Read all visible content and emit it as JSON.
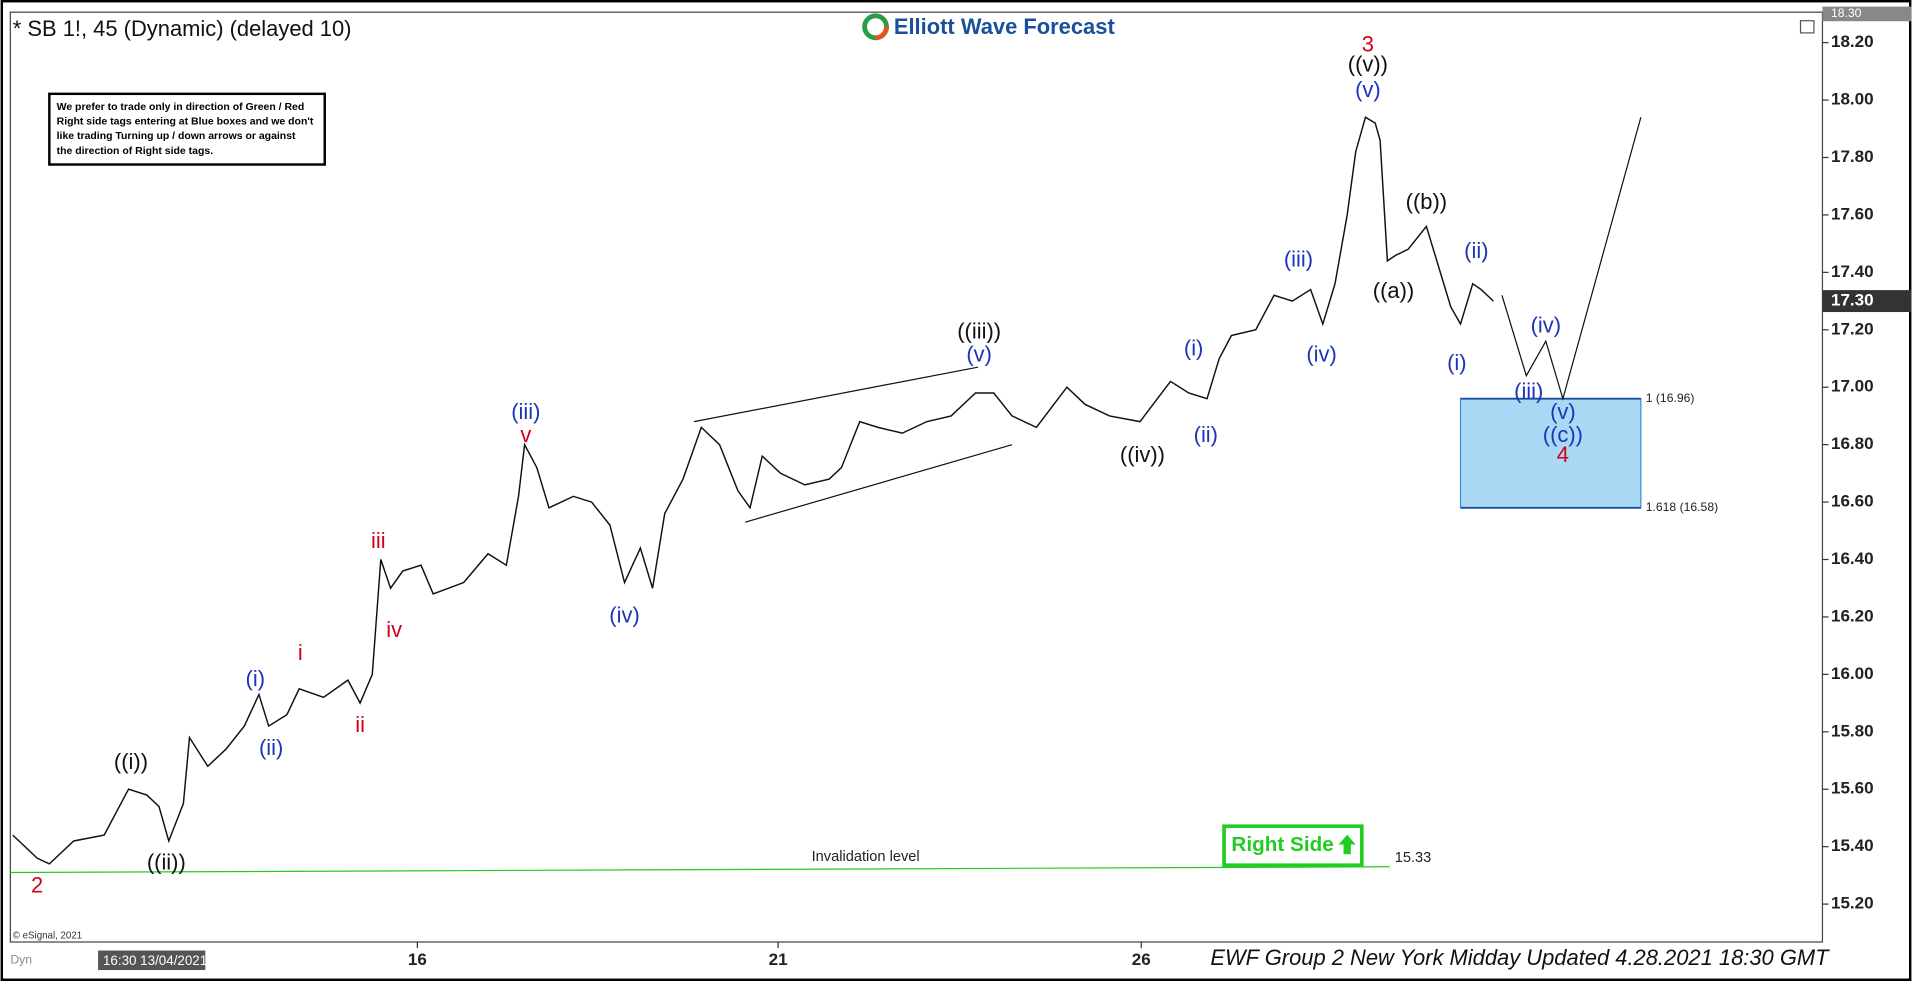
{
  "chart_data": {
    "type": "line",
    "title": "* SB 1!, 45 (Dynamic) (delayed 10)",
    "brand": "Elliott Wave Forecast",
    "note": [
      "We prefer to trade only in direction of Green / Red",
      "Right side tags entering at Blue boxes and we don't",
      "like trading Turning up / down arrows or against",
      "the direction of Right side tags."
    ],
    "footer": "EWF Group 2 New York Midday Updated 4.28.2021 18:30 GMT",
    "copyright": "© eSignal, 2021",
    "start_label": "16:30 13/04/2021",
    "mode_label": "Dyn",
    "right_side": "Right Side",
    "xlim": [
      0,
      1487
    ],
    "xticks": [
      {
        "value": 334,
        "label": "16"
      },
      {
        "value": 630,
        "label": "21"
      },
      {
        "value": 928,
        "label": "26"
      }
    ],
    "ylim": [
      15.068,
      18.306
    ],
    "yticks": [
      {
        "value": 15.2,
        "label": "15.20"
      },
      {
        "value": 15.4,
        "label": "15.40"
      },
      {
        "value": 15.6,
        "label": "15.60"
      },
      {
        "value": 15.8,
        "label": "15.80"
      },
      {
        "value": 16.0,
        "label": "16.00"
      },
      {
        "value": 16.2,
        "label": "16.20"
      },
      {
        "value": 16.4,
        "label": "16.40"
      },
      {
        "value": 16.6,
        "label": "16.60"
      },
      {
        "value": 16.8,
        "label": "16.80"
      },
      {
        "value": 17.0,
        "label": "17.00"
      },
      {
        "value": 17.2,
        "label": "17.20"
      },
      {
        "value": 17.4,
        "label": "17.40"
      },
      {
        "value": 17.6,
        "label": "17.60"
      },
      {
        "value": 17.8,
        "label": "17.80"
      },
      {
        "value": 18.0,
        "label": "18.00"
      },
      {
        "value": 18.2,
        "label": "18.20"
      }
    ],
    "last_price": {
      "value": 17.3,
      "label": "17.30"
    },
    "top_price": {
      "value": 18.3,
      "label": "18.30"
    },
    "series": [
      {
        "color": "#111111",
        "x": [
          2,
          22,
          32,
          52,
          77,
          97,
          112,
          122,
          130,
          142,
          147,
          162,
          177,
          192,
          204,
          212,
          227,
          237,
          257,
          277,
          287,
          297,
          304,
          312,
          322,
          337,
          347,
          372,
          392,
          407,
          417,
          422,
          432,
          442,
          462,
          477,
          492,
          504,
          517,
          527,
          537,
          552,
          567,
          582,
          597,
          607,
          617,
          632,
          652,
          672,
          682,
          697,
          712,
          732,
          752,
          772,
          792,
          807,
          822,
          842,
          867,
          882,
          902,
          927,
          952,
          967,
          982,
          992,
          1002,
          1022,
          1037,
          1052,
          1067,
          1077,
          1087,
          1097,
          1104,
          1112,
          1120,
          1124,
          1130,
          1137,
          1147,
          1162,
          1172,
          1182,
          1190,
          1200,
          1207,
          1217
        ],
        "values": [
          15.44,
          15.36,
          15.34,
          15.42,
          15.44,
          15.6,
          15.58,
          15.54,
          15.42,
          15.55,
          15.78,
          15.68,
          15.74,
          15.82,
          15.93,
          15.82,
          15.86,
          15.95,
          15.92,
          15.98,
          15.9,
          16.0,
          16.4,
          16.3,
          16.36,
          16.38,
          16.28,
          16.32,
          16.42,
          16.38,
          16.62,
          16.8,
          16.72,
          16.58,
          16.62,
          16.6,
          16.52,
          16.32,
          16.44,
          16.3,
          16.56,
          16.68,
          16.86,
          16.8,
          16.64,
          16.58,
          16.76,
          16.7,
          16.66,
          16.68,
          16.72,
          16.88,
          16.86,
          16.84,
          16.88,
          16.9,
          16.98,
          16.98,
          16.9,
          16.86,
          17.0,
          16.94,
          16.9,
          16.88,
          17.02,
          16.98,
          16.96,
          17.1,
          17.18,
          17.2,
          17.32,
          17.3,
          17.34,
          17.22,
          17.36,
          17.6,
          17.82,
          17.94,
          17.92,
          17.86,
          17.44,
          17.46,
          17.48,
          17.56,
          17.42,
          17.28,
          17.22,
          17.36,
          17.34,
          17.3
        ]
      }
    ],
    "projection": {
      "x": [
        1224,
        1244,
        1260,
        1274,
        1338
      ],
      "values": [
        17.32,
        17.04,
        17.16,
        16.96,
        17.94
      ]
    },
    "trendlines": [
      {
        "x": [
          561,
          794
        ],
        "values": [
          16.88,
          17.07
        ]
      },
      {
        "x": [
          603,
          822
        ],
        "values": [
          16.53,
          16.8
        ]
      }
    ],
    "invalidation": {
      "label": "Invalidation level",
      "value": 15.33,
      "x": [
        0,
        1132
      ],
      "values": [
        15.31,
        15.33
      ]
    },
    "target_box": {
      "x": [
        1190,
        1338
      ],
      "levels": [
        {
          "value": 16.96,
          "label": "1 (16.96)"
        },
        {
          "value": 16.58,
          "label": "1.618 (16.58)"
        }
      ]
    },
    "wave_labels": [
      {
        "text": "2",
        "x": 22,
        "y": 15.26,
        "color": "#d0021b"
      },
      {
        "text": "((i))",
        "x": 99,
        "y": 15.69,
        "color": "#111111"
      },
      {
        "text": "((ii))",
        "x": 128,
        "y": 15.34,
        "color": "#111111"
      },
      {
        "text": "(i)",
        "x": 201,
        "y": 15.98,
        "color": "#1c34b8"
      },
      {
        "text": "(ii)",
        "x": 214,
        "y": 15.74,
        "color": "#1c34b8"
      },
      {
        "text": "i",
        "x": 238,
        "y": 16.07,
        "color": "#d0021b"
      },
      {
        "text": "ii",
        "x": 287,
        "y": 15.82,
        "color": "#d0021b"
      },
      {
        "text": "iii",
        "x": 302,
        "y": 16.46,
        "color": "#d0021b"
      },
      {
        "text": "iv",
        "x": 315,
        "y": 16.15,
        "color": "#d0021b"
      },
      {
        "text": "(iii)",
        "x": 423,
        "y": 16.91,
        "color": "#1c34b8"
      },
      {
        "text": "v",
        "x": 423,
        "y": 16.83,
        "color": "#d0021b"
      },
      {
        "text": "(iv)",
        "x": 504,
        "y": 16.2,
        "color": "#1c34b8"
      },
      {
        "text": "((iii))",
        "x": 795,
        "y": 17.19,
        "color": "#111111"
      },
      {
        "text": "(v)",
        "x": 795,
        "y": 17.11,
        "color": "#1c34b8"
      },
      {
        "text": "((iv))",
        "x": 929,
        "y": 16.76,
        "color": "#111111"
      },
      {
        "text": "(i)",
        "x": 971,
        "y": 17.13,
        "color": "#1c34b8"
      },
      {
        "text": "(ii)",
        "x": 981,
        "y": 16.83,
        "color": "#1c34b8"
      },
      {
        "text": "(iii)",
        "x": 1057,
        "y": 17.44,
        "color": "#1c34b8"
      },
      {
        "text": "(iv)",
        "x": 1076,
        "y": 17.11,
        "color": "#1c34b8"
      },
      {
        "text": "3",
        "x": 1114,
        "y": 18.19,
        "color": "#d0021b"
      },
      {
        "text": "((v))",
        "x": 1114,
        "y": 18.12,
        "color": "#111111"
      },
      {
        "text": "(v)",
        "x": 1114,
        "y": 18.03,
        "color": "#1c34b8"
      },
      {
        "text": "((a))",
        "x": 1135,
        "y": 17.33,
        "color": "#111111"
      },
      {
        "text": "((b))",
        "x": 1162,
        "y": 17.64,
        "color": "#111111"
      },
      {
        "text": "(ii)",
        "x": 1203,
        "y": 17.47,
        "color": "#1c34b8"
      },
      {
        "text": "(i)",
        "x": 1187,
        "y": 17.08,
        "color": "#1c34b8"
      },
      {
        "text": "(iv)",
        "x": 1260,
        "y": 17.21,
        "color": "#1c34b8"
      },
      {
        "text": "(iii)",
        "x": 1246,
        "y": 16.98,
        "color": "#1c34b8"
      },
      {
        "text": "(v)",
        "x": 1274,
        "y": 16.91,
        "color": "#1c34b8"
      },
      {
        "text": "((c))",
        "x": 1274,
        "y": 16.83,
        "color": "#1c34b8"
      },
      {
        "text": "4",
        "x": 1274,
        "y": 16.76,
        "color": "#d0021b"
      }
    ]
  }
}
